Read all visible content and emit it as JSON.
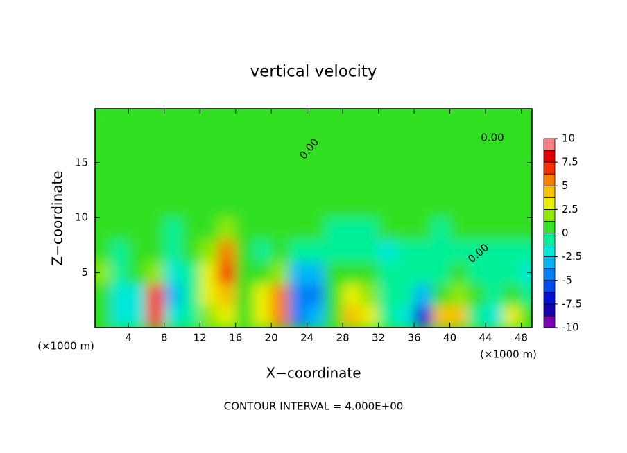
{
  "chart_data": {
    "type": "contour",
    "title": "vertical velocity",
    "x_label": "X−coordinate",
    "y_label": "Z−coordinate",
    "x_unit": "(×1000 m)",
    "x_unit_right": "(×1000 m)",
    "footer": "CONTOUR INTERVAL = 4.000E+00",
    "contour_labels": [
      "0.00",
      "0.00",
      "0.00"
    ],
    "xlim": [
      0.25,
      49.2
    ],
    "xticks": [
      4,
      8,
      12,
      16,
      20,
      24,
      28,
      32,
      36,
      40,
      44,
      48
    ],
    "ylim": [
      0,
      19.9
    ],
    "yticks": [
      5,
      10,
      15
    ],
    "x": [
      1,
      3,
      5,
      7,
      9,
      11,
      13,
      15,
      17,
      19,
      21,
      23,
      25,
      27,
      29,
      31,
      33,
      35,
      37,
      39,
      41,
      43,
      45,
      47,
      49
    ],
    "y": [
      1,
      3,
      5,
      7,
      9,
      11,
      13,
      15,
      17,
      19
    ],
    "z": [
      [
        0,
        -2,
        -2,
        7,
        -2,
        -1,
        2,
        3,
        0,
        3,
        6,
        -4,
        -3,
        0,
        4,
        3,
        -1,
        -2,
        -7,
        4,
        4,
        -1,
        -2,
        3,
        0
      ],
      [
        0,
        -2,
        -2,
        7,
        -3,
        -1,
        3,
        4,
        0,
        3,
        6,
        -5,
        -4,
        0,
        3,
        2,
        -1,
        -1,
        -3,
        1,
        2,
        0,
        -1,
        1,
        -1
      ],
      [
        2,
        -1,
        0,
        2,
        -2,
        -1,
        3,
        7,
        1,
        0,
        2,
        -3,
        -3,
        0,
        1,
        0,
        -1,
        -1,
        -1,
        -1,
        0,
        -1,
        -1,
        -1,
        -2
      ],
      [
        0,
        -1,
        0,
        0,
        -1,
        0,
        2,
        5,
        1,
        -1,
        0,
        -1,
        -1,
        -1,
        -1,
        -1,
        -2,
        -1,
        -1,
        -1,
        -1,
        -1,
        -1,
        -1,
        -1
      ],
      [
        0,
        0,
        0,
        0,
        -1,
        0,
        1,
        2,
        1,
        0,
        0,
        0,
        0,
        -1,
        -1,
        -1,
        0,
        0,
        0,
        -1,
        0,
        0,
        0,
        0,
        0
      ],
      [
        0,
        0,
        0,
        1,
        0,
        0,
        0,
        1,
        1,
        0,
        0,
        0,
        0,
        0,
        0,
        0,
        1,
        1,
        1,
        1,
        1,
        0,
        0,
        0,
        0
      ],
      [
        0,
        0,
        0,
        1,
        1,
        0,
        0,
        0,
        0,
        0,
        0,
        0,
        0,
        0,
        0,
        0,
        0,
        1,
        1,
        1,
        0,
        0,
        0,
        0,
        0
      ],
      [
        0,
        0,
        0,
        0,
        0,
        0,
        0,
        0,
        0,
        0,
        0,
        0,
        0,
        0,
        0,
        0,
        0,
        0,
        0,
        0,
        0,
        0,
        0,
        0,
        0
      ],
      [
        0,
        0,
        0,
        0,
        0,
        0,
        0,
        0,
        0,
        0,
        0,
        0,
        0,
        0,
        0,
        0,
        0,
        0,
        0,
        0,
        0,
        0,
        0,
        0,
        0
      ],
      [
        0,
        0,
        0,
        0,
        0,
        0,
        0,
        0,
        0,
        0,
        0,
        0,
        0,
        0,
        0,
        0,
        0,
        0,
        0,
        0,
        0,
        0,
        0,
        0,
        0
      ]
    ],
    "zlim": [
      -10,
      10
    ],
    "zticks": [
      10,
      7.5,
      5,
      2.5,
      0,
      -2.5,
      -5,
      -7.5,
      -10
    ],
    "colors": [
      "#7a00b8",
      "#1800b0",
      "#0010d8",
      "#0048f0",
      "#0080f8",
      "#00b8f8",
      "#00e8d8",
      "#00f098",
      "#33e022",
      "#90e800",
      "#e8f000",
      "#f8c000",
      "#f88000",
      "#f83000",
      "#e00000",
      "#f88080"
    ]
  }
}
